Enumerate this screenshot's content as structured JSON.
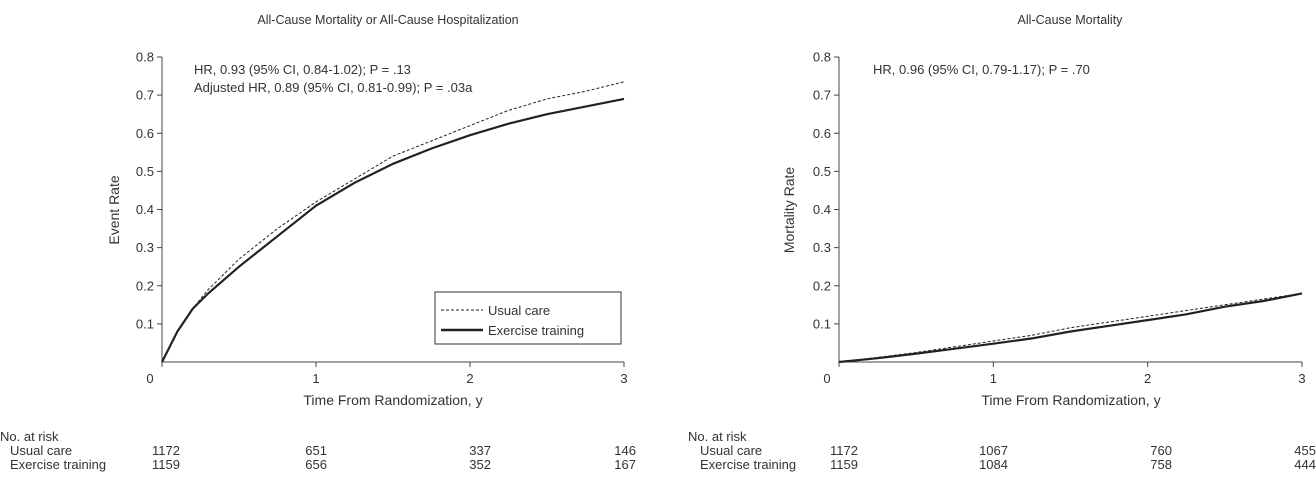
{
  "chart_data": [
    {
      "type": "line",
      "title": "All-Cause Mortality or All-Cause Hospitalization",
      "xlabel": "Time From Randomization, y",
      "ylabel": "Event Rate",
      "xlim": [
        0,
        3
      ],
      "ylim": [
        0,
        0.8
      ],
      "x_ticks": [
        "0",
        "1",
        "2",
        "3"
      ],
      "y_ticks": [
        "0.1",
        "0.2",
        "0.3",
        "0.4",
        "0.5",
        "0.6",
        "0.7",
        "0.8"
      ],
      "annotations": [
        "HR, 0.93 (95% CI, 0.84-1.02); P = .13",
        "Adjusted HR, 0.89 (95% CI, 0.81-0.99); P = .03a"
      ],
      "legend": {
        "position": "bottom-right",
        "entries": [
          "Usual care",
          "Exercise training"
        ]
      },
      "series": [
        {
          "name": "Usual care",
          "style": "dashed",
          "x": [
            0,
            0.05,
            0.1,
            0.2,
            0.3,
            0.5,
            0.75,
            1.0,
            1.25,
            1.5,
            1.75,
            2.0,
            2.25,
            2.5,
            2.75,
            3.0
          ],
          "y": [
            0,
            0.04,
            0.08,
            0.14,
            0.19,
            0.27,
            0.35,
            0.42,
            0.48,
            0.54,
            0.58,
            0.62,
            0.66,
            0.69,
            0.71,
            0.735
          ]
        },
        {
          "name": "Exercise training",
          "style": "solid",
          "x": [
            0,
            0.05,
            0.1,
            0.2,
            0.3,
            0.5,
            0.75,
            1.0,
            1.25,
            1.5,
            1.75,
            2.0,
            2.25,
            2.5,
            2.75,
            3.0
          ],
          "y": [
            0,
            0.04,
            0.08,
            0.14,
            0.18,
            0.25,
            0.33,
            0.41,
            0.47,
            0.52,
            0.56,
            0.595,
            0.625,
            0.65,
            0.67,
            0.69
          ]
        }
      ],
      "at_risk": {
        "label": "No. at risk",
        "x": [
          0,
          1,
          2,
          3
        ],
        "rows": [
          {
            "name": "Usual care",
            "values": [
              "1172",
              "651",
              "337",
              "146"
            ]
          },
          {
            "name": "Exercise training",
            "values": [
              "1159",
              "656",
              "352",
              "167"
            ]
          }
        ]
      }
    },
    {
      "type": "line",
      "title": "All-Cause Mortality",
      "xlabel": "Time From Randomization, y",
      "ylabel": "Mortality Rate",
      "xlim": [
        0,
        3
      ],
      "ylim": [
        0,
        0.8
      ],
      "x_ticks": [
        "0",
        "1",
        "2",
        "3"
      ],
      "y_ticks": [
        "0.1",
        "0.2",
        "0.3",
        "0.4",
        "0.5",
        "0.6",
        "0.7",
        "0.8"
      ],
      "annotations": [
        "HR, 0.96 (95% CI, 0.79-1.17); P = .70"
      ],
      "series": [
        {
          "name": "Usual care",
          "style": "dashed",
          "x": [
            0,
            0.25,
            0.5,
            0.75,
            1.0,
            1.25,
            1.5,
            1.75,
            2.0,
            2.25,
            2.5,
            2.75,
            3.0
          ],
          "y": [
            0,
            0.012,
            0.025,
            0.04,
            0.055,
            0.07,
            0.09,
            0.105,
            0.12,
            0.135,
            0.15,
            0.165,
            0.18
          ]
        },
        {
          "name": "Exercise training",
          "style": "solid",
          "x": [
            0,
            0.25,
            0.5,
            0.75,
            1.0,
            1.25,
            1.5,
            1.75,
            2.0,
            2.25,
            2.5,
            2.75,
            3.0
          ],
          "y": [
            0,
            0.01,
            0.022,
            0.035,
            0.048,
            0.062,
            0.08,
            0.095,
            0.11,
            0.125,
            0.145,
            0.16,
            0.18
          ]
        }
      ],
      "at_risk": {
        "label": "No. at risk",
        "x": [
          0,
          1,
          2,
          3
        ],
        "rows": [
          {
            "name": "Usual care",
            "values": [
              "1172",
              "1067",
              "760",
              "455"
            ]
          },
          {
            "name": "Exercise training",
            "values": [
              "1159",
              "1084",
              "758",
              "444"
            ]
          }
        ]
      }
    }
  ]
}
